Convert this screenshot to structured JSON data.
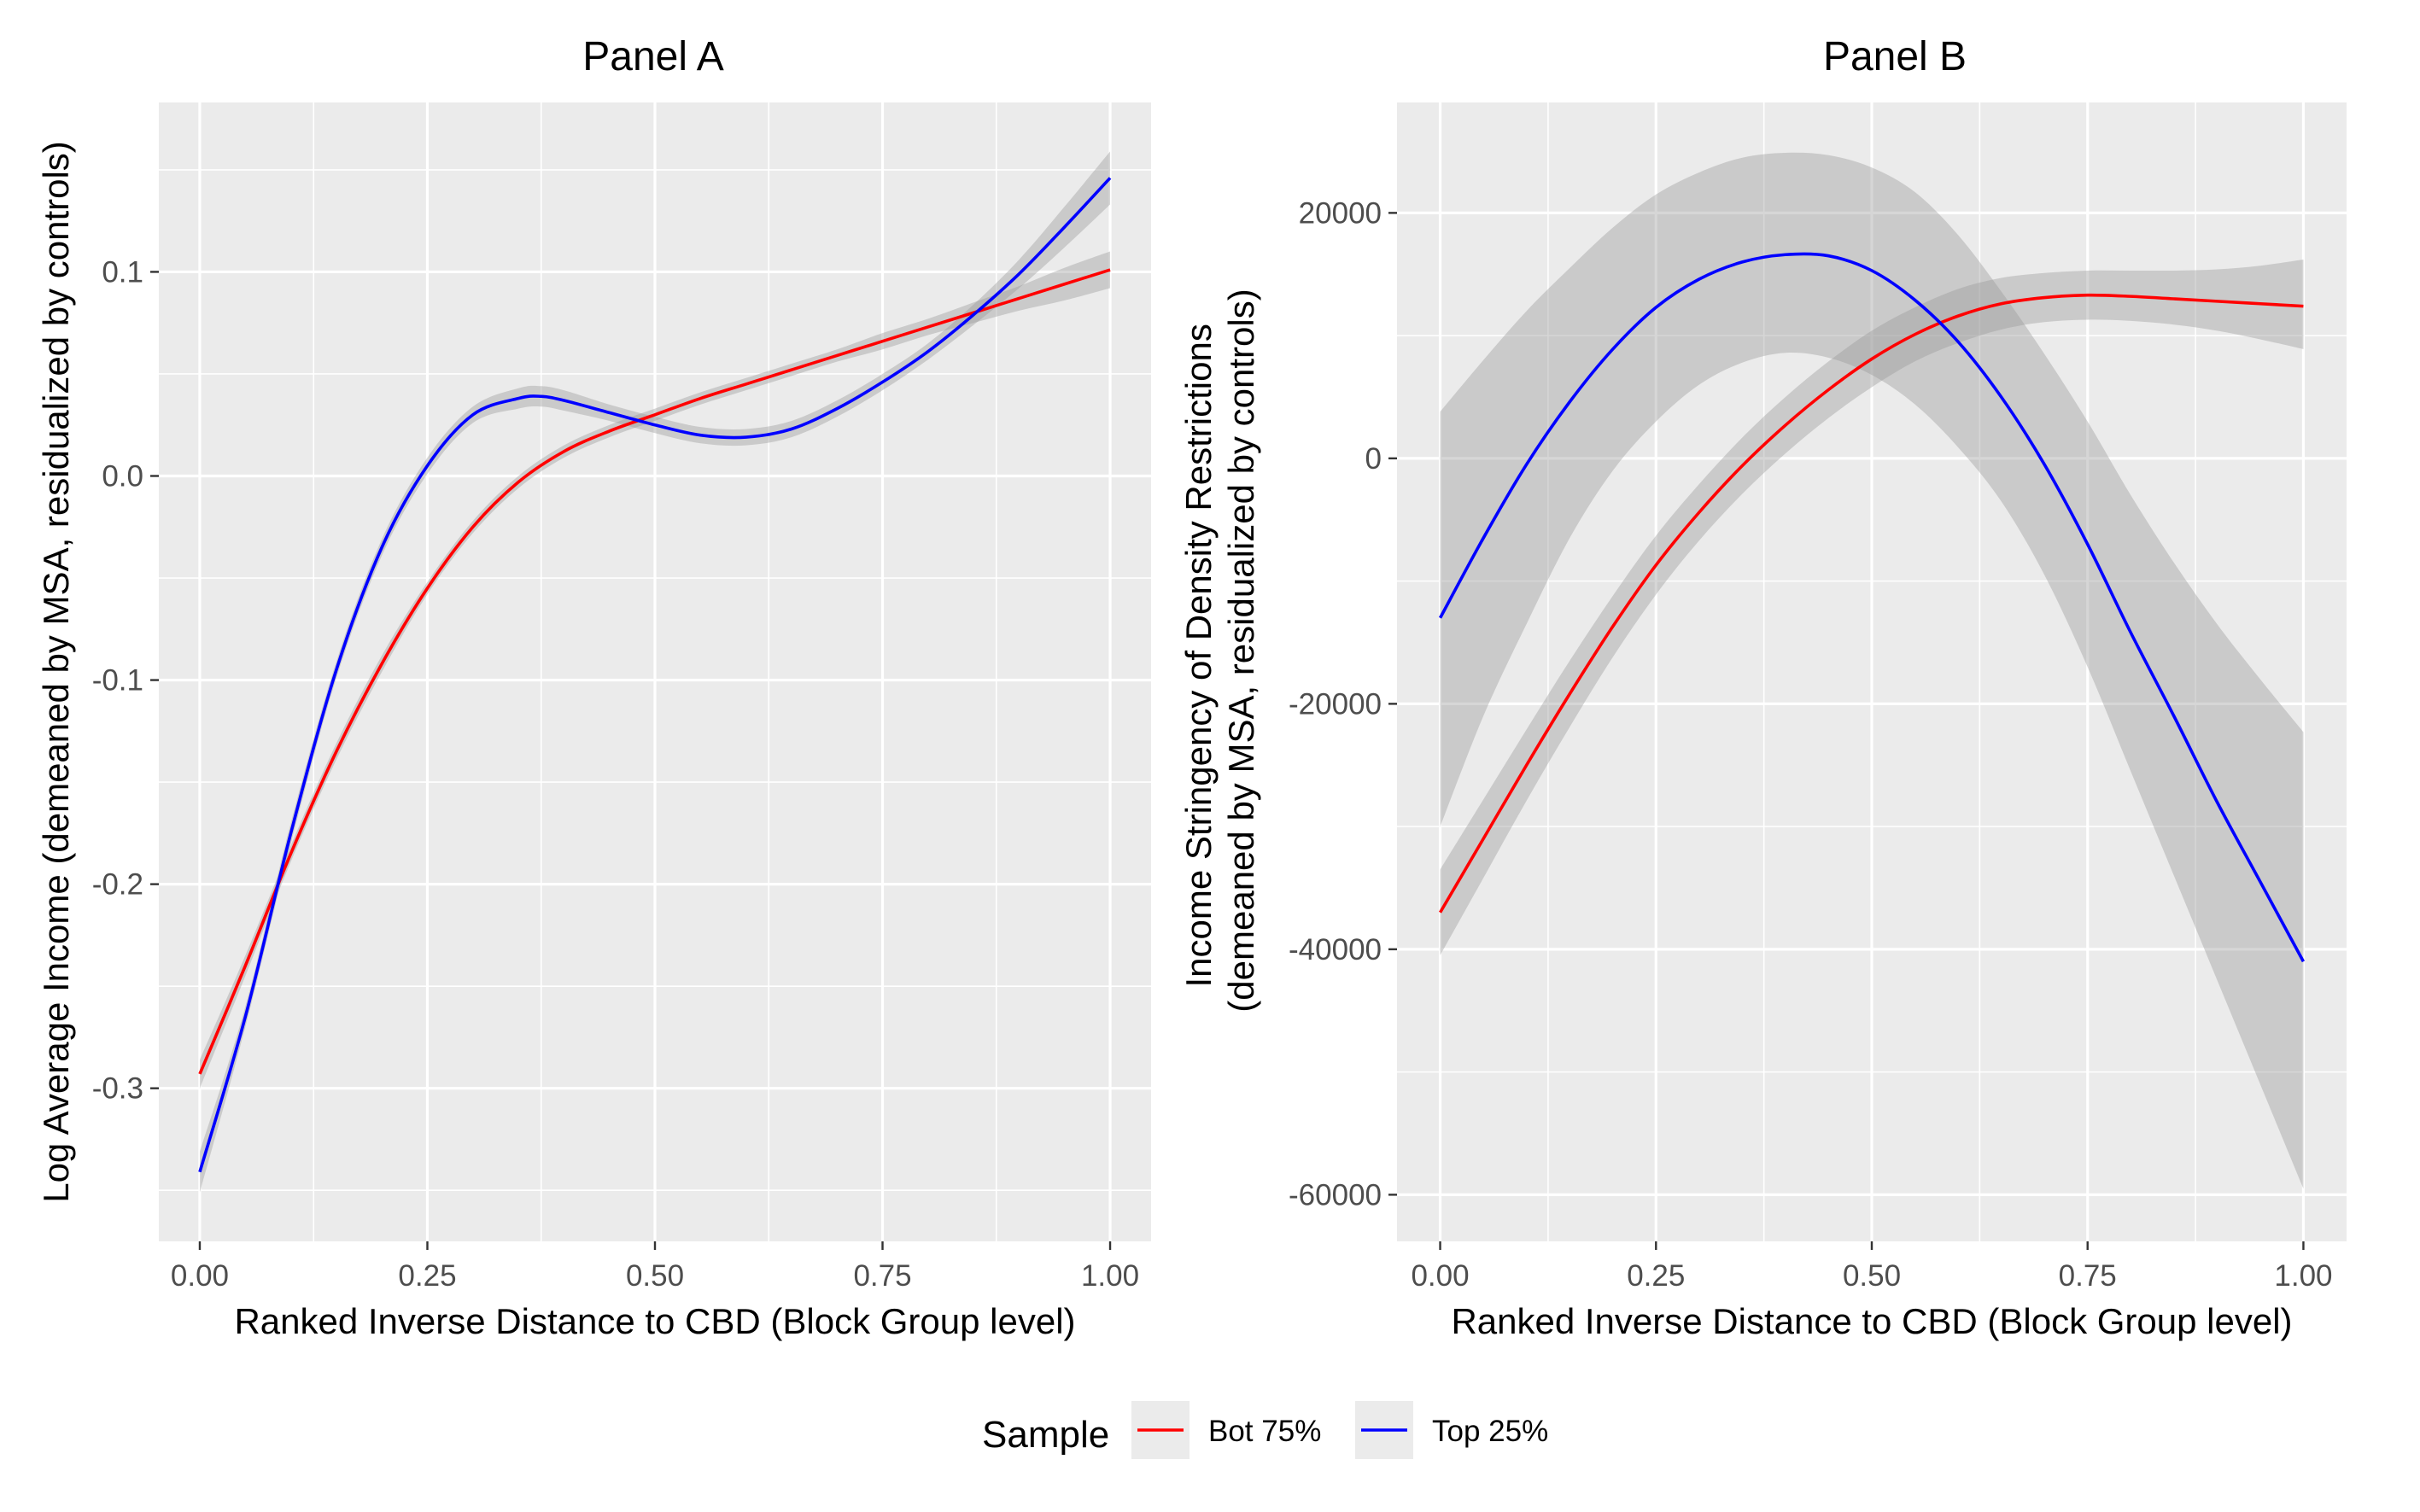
{
  "chart_data": [
    {
      "type": "line",
      "title": "Panel A",
      "xlabel": "Ranked Inverse Distance to CBD (Block Group level)",
      "ylabel": "Log Average Income (demeaned by MSA, residualized by controls)",
      "xlim": [
        -0.045,
        1.045
      ],
      "ylim": [
        -0.375,
        0.183
      ],
      "x_ticks": [
        0.0,
        0.25,
        0.5,
        0.75,
        1.0
      ],
      "x_tick_labels": [
        "0.00",
        "0.25",
        "0.50",
        "0.75",
        "1.00"
      ],
      "y_ticks": [
        -0.3,
        -0.2,
        -0.1,
        0.0,
        0.1
      ],
      "y_tick_labels": [
        "-0.3",
        "-0.2",
        "-0.1",
        "0.0",
        "0.1"
      ],
      "grid": true,
      "series": [
        {
          "name": "Bot 75%",
          "color": "#ff0000",
          "x": [
            0.0,
            0.05,
            0.1,
            0.15,
            0.2,
            0.25,
            0.3,
            0.35,
            0.4,
            0.45,
            0.5,
            0.55,
            0.6,
            0.65,
            0.7,
            0.75,
            0.8,
            0.85,
            0.9,
            0.95,
            1.0
          ],
          "y": [
            -0.293,
            -0.24,
            -0.185,
            -0.135,
            -0.092,
            -0.055,
            -0.025,
            -0.003,
            0.012,
            0.022,
            0.03,
            0.038,
            0.045,
            0.052,
            0.059,
            0.066,
            0.073,
            0.08,
            0.087,
            0.094,
            0.101
          ],
          "ci_lower": [
            -0.3,
            -0.245,
            -0.189,
            -0.139,
            -0.096,
            -0.058,
            -0.028,
            -0.006,
            0.009,
            0.019,
            0.027,
            0.035,
            0.042,
            0.049,
            0.056,
            0.062,
            0.069,
            0.075,
            0.081,
            0.086,
            0.092
          ],
          "ci_upper": [
            -0.286,
            -0.235,
            -0.181,
            -0.131,
            -0.088,
            -0.052,
            -0.022,
            0.0,
            0.015,
            0.025,
            0.033,
            0.041,
            0.048,
            0.055,
            0.062,
            0.07,
            0.077,
            0.085,
            0.093,
            0.102,
            0.11
          ]
        },
        {
          "name": "Top 25%",
          "color": "#0000ff",
          "x": [
            0.0,
            0.05,
            0.1,
            0.15,
            0.2,
            0.25,
            0.3,
            0.35,
            0.375,
            0.4,
            0.45,
            0.5,
            0.55,
            0.6,
            0.65,
            0.7,
            0.75,
            0.8,
            0.85,
            0.9,
            0.95,
            1.0
          ],
          "y": [
            -0.341,
            -0.265,
            -0.175,
            -0.095,
            -0.035,
            0.005,
            0.03,
            0.038,
            0.039,
            0.037,
            0.031,
            0.025,
            0.02,
            0.019,
            0.023,
            0.033,
            0.046,
            0.061,
            0.079,
            0.099,
            0.122,
            0.146
          ],
          "ci_lower": [
            -0.351,
            -0.27,
            -0.18,
            -0.099,
            -0.039,
            0.001,
            0.026,
            0.033,
            0.034,
            0.032,
            0.027,
            0.021,
            0.016,
            0.015,
            0.019,
            0.029,
            0.042,
            0.057,
            0.074,
            0.092,
            0.112,
            0.133
          ],
          "ci_upper": [
            -0.331,
            -0.26,
            -0.17,
            -0.091,
            -0.031,
            0.009,
            0.034,
            0.043,
            0.044,
            0.042,
            0.035,
            0.029,
            0.024,
            0.023,
            0.027,
            0.037,
            0.05,
            0.065,
            0.084,
            0.106,
            0.132,
            0.159
          ]
        }
      ]
    },
    {
      "type": "line",
      "title": "Panel B",
      "xlabel": "Ranked Inverse Distance to CBD (Block Group level)",
      "ylabel": "Income Stringency of Density Restrictions\n(demeaned by MSA, residualized by controls)",
      "xlim": [
        -0.05,
        1.05
      ],
      "ylim": [
        -63800,
        29000
      ],
      "x_ticks": [
        0.0,
        0.25,
        0.5,
        0.75,
        1.0
      ],
      "x_tick_labels": [
        "0.00",
        "0.25",
        "0.50",
        "0.75",
        "1.00"
      ],
      "y_ticks": [
        -60000,
        -40000,
        -20000,
        0,
        20000
      ],
      "y_tick_labels": [
        "-60000",
        "-40000",
        "-20000",
        "0",
        "20000"
      ],
      "grid": true,
      "series": [
        {
          "name": "Bot 75%",
          "color": "#ff0000",
          "x": [
            0.0,
            0.05,
            0.1,
            0.15,
            0.2,
            0.25,
            0.3,
            0.35,
            0.4,
            0.45,
            0.5,
            0.55,
            0.6,
            0.65,
            0.7,
            0.75,
            0.8,
            0.85,
            0.9,
            0.95,
            1.0
          ],
          "y": [
            -37000,
            -31000,
            -25000,
            -19200,
            -13700,
            -8700,
            -4400,
            -600,
            2700,
            5600,
            8100,
            10100,
            11600,
            12600,
            13100,
            13300,
            13200,
            13000,
            12800,
            12600,
            12400
          ],
          "ci_lower": [
            -40500,
            -34200,
            -27900,
            -21900,
            -16200,
            -11100,
            -6700,
            -2900,
            400,
            3300,
            5800,
            7900,
            9400,
            10500,
            11100,
            11300,
            11200,
            10900,
            10400,
            9700,
            8900
          ],
          "ci_upper": [
            -33500,
            -27800,
            -22100,
            -16500,
            -11200,
            -6300,
            -2100,
            1700,
            5000,
            7900,
            10400,
            12300,
            13800,
            14700,
            15100,
            15300,
            15300,
            15300,
            15400,
            15700,
            16200
          ]
        },
        {
          "name": "Top 25%",
          "color": "#0000ff",
          "x": [
            0.0,
            0.05,
            0.1,
            0.15,
            0.2,
            0.25,
            0.3,
            0.35,
            0.4,
            0.45,
            0.5,
            0.55,
            0.6,
            0.65,
            0.7,
            0.75,
            0.8,
            0.85,
            0.9,
            0.95,
            1.0
          ],
          "y": [
            -13000,
            -6500,
            -500,
            4600,
            8900,
            12300,
            14600,
            16000,
            16600,
            16500,
            15300,
            12900,
            9500,
            5000,
            -500,
            -7000,
            -14200,
            -21000,
            -28000,
            -34500,
            -41000
          ],
          "ci_lower": [
            -30000,
            -21000,
            -13500,
            -6500,
            -1000,
            3000,
            6000,
            7800,
            8600,
            8200,
            6800,
            4400,
            900,
            -3500,
            -9500,
            -17000,
            -25500,
            -34000,
            -42500,
            -51000,
            -59500
          ],
          "ci_upper": [
            3800,
            8000,
            12000,
            15500,
            18800,
            21500,
            23300,
            24500,
            24900,
            24700,
            23700,
            21700,
            18200,
            13600,
            8500,
            3000,
            -3000,
            -8500,
            -13500,
            -18000,
            -22300
          ]
        }
      ]
    }
  ],
  "legend": {
    "title": "Sample",
    "position": "bottom",
    "entries": [
      {
        "label": "Bot 75%",
        "color": "#ff0000"
      },
      {
        "label": "Top 25%",
        "color": "#0000ff"
      }
    ]
  },
  "colors": {
    "panel_background": "#ebebeb",
    "grid": "#ffffff",
    "ribbon": "#999999"
  }
}
